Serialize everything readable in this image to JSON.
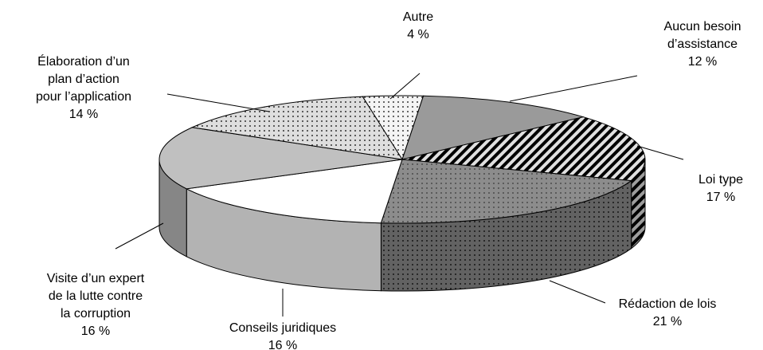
{
  "chart_data": {
    "type": "pie3d",
    "categories": [
      [
        "Autre"
      ],
      [
        "Aucun besoin",
        "d’assistance"
      ],
      [
        "Loi type"
      ],
      [
        "Rédaction de lois"
      ],
      [
        "Conseils juridiques"
      ],
      [
        "Visite d’un expert",
        "de la lutte contre",
        "la corruption"
      ],
      [
        "Élaboration d’un",
        "plan d’action",
        "pour l’application"
      ]
    ],
    "values": [
      4,
      12,
      17,
      21,
      16,
      16,
      14
    ],
    "value_labels": [
      "4 %",
      "12 %",
      "17 %",
      "21 %",
      "16 %",
      "16 %",
      "14 %"
    ],
    "colors": [
      "#f4f4f4",
      "#9a9a9a",
      "#e0e0e0",
      "#8c8c8c",
      "#ffffff",
      "#c0c0c0",
      "#dedede"
    ]
  }
}
